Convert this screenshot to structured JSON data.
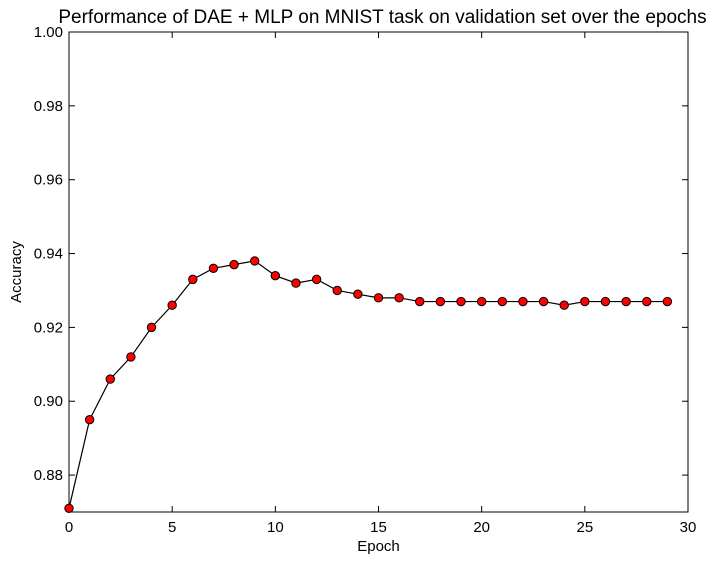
{
  "chart_data": {
    "type": "line",
    "title": "Performance of DAE + MLP on MNIST task on validation set over the epochs",
    "xlabel": "Epoch",
    "ylabel": "Accuracy",
    "xlim": [
      0,
      30
    ],
    "ylim": [
      0.87,
      1.0
    ],
    "xticks": [
      0,
      5,
      10,
      15,
      20,
      25,
      30
    ],
    "yticks": [
      0.88,
      0.9,
      0.92,
      0.94,
      0.96,
      0.98,
      1.0
    ],
    "xtick_labels": [
      "0",
      "5",
      "10",
      "15",
      "20",
      "25",
      "30"
    ],
    "ytick_labels": [
      "0.88",
      "0.90",
      "0.92",
      "0.94",
      "0.96",
      "0.98",
      "1.00"
    ],
    "grid": false,
    "series": [
      {
        "line_color": "#000000",
        "marker": "circle",
        "marker_color": "#ff0000",
        "x": [
          0,
          1,
          2,
          3,
          4,
          5,
          6,
          7,
          8,
          9,
          10,
          11,
          12,
          13,
          14,
          15,
          16,
          17,
          18,
          19,
          20,
          21,
          22,
          23,
          24,
          25,
          26,
          27,
          28,
          29
        ],
        "y": [
          0.871,
          0.895,
          0.906,
          0.912,
          0.92,
          0.926,
          0.933,
          0.936,
          0.937,
          0.938,
          0.934,
          0.932,
          0.933,
          0.93,
          0.929,
          0.928,
          0.928,
          0.927,
          0.927,
          0.927,
          0.927,
          0.927,
          0.927,
          0.927,
          0.926,
          0.927,
          0.927,
          0.927,
          0.927,
          0.927
        ]
      }
    ]
  }
}
